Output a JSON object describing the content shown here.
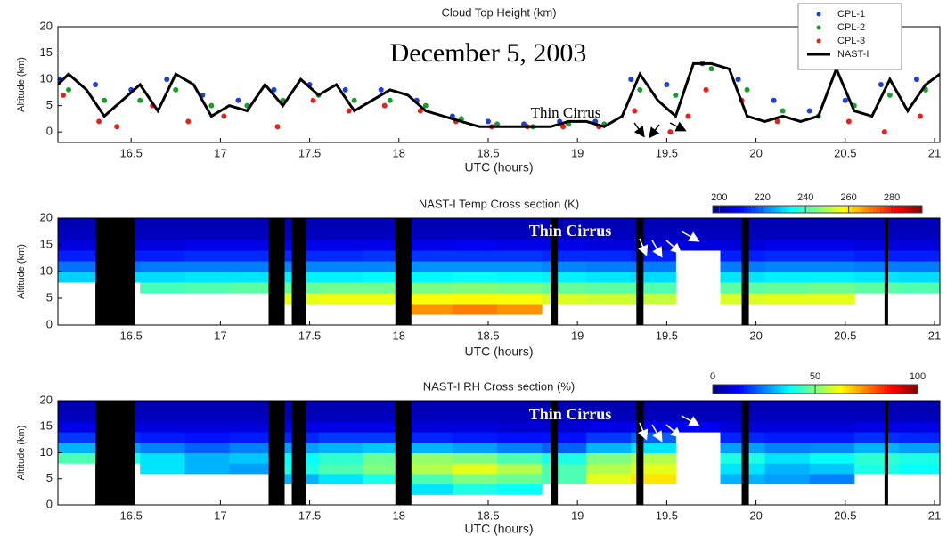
{
  "chart_data": [
    {
      "type": "scatter",
      "title": "Cloud Top Height (km)",
      "xlabel": "UTC (hours)",
      "ylabel": "Altitude (km)",
      "annotations": [
        "December 5, 2003",
        "Thin Cirrus"
      ],
      "xlim": [
        16.09,
        21.03
      ],
      "xticks": [
        16.5,
        17,
        17.5,
        18,
        18.5,
        19,
        19.5,
        20,
        20.5,
        21
      ],
      "ylim": [
        -2,
        20
      ],
      "yticks": [
        0,
        5,
        10,
        15,
        20
      ],
      "legend": "top-right",
      "series": [
        {
          "name": "CPL-1",
          "color": "#1f3fd6",
          "mode": "markers",
          "x": [
            16.1,
            16.3,
            16.5,
            16.7,
            16.9,
            17.1,
            17.3,
            17.5,
            17.7,
            17.9,
            18.1,
            18.3,
            18.5,
            18.7,
            18.9,
            19.1,
            19.3,
            19.5,
            19.7,
            19.9,
            20.1,
            20.3,
            20.5,
            20.7,
            20.9
          ],
          "values": [
            10,
            9,
            8,
            10,
            7,
            6,
            8,
            9,
            8,
            8,
            6,
            3,
            2,
            1.5,
            2,
            2,
            10,
            9,
            13,
            10,
            6,
            4,
            6,
            9,
            10
          ]
        },
        {
          "name": "CPL-2",
          "color": "#1e9a2e",
          "mode": "markers",
          "x": [
            16.15,
            16.35,
            16.55,
            16.75,
            16.95,
            17.15,
            17.35,
            17.55,
            17.75,
            17.95,
            18.15,
            18.35,
            18.55,
            18.75,
            18.95,
            19.15,
            19.35,
            19.55,
            19.75,
            19.95,
            20.15,
            20.35,
            20.55,
            20.75,
            20.95
          ],
          "values": [
            8,
            6,
            6,
            8,
            5,
            5,
            6,
            7,
            6,
            6,
            5,
            2.5,
            1.5,
            1,
            1.5,
            1.5,
            8,
            7,
            12,
            8,
            4,
            3,
            5,
            7,
            8
          ]
        },
        {
          "name": "CPL-3",
          "color": "#e0231c",
          "mode": "markers",
          "x": [
            16.12,
            16.32,
            16.42,
            16.62,
            16.82,
            17.02,
            17.32,
            17.52,
            17.72,
            17.92,
            18.12,
            18.32,
            18.52,
            18.72,
            18.92,
            19.12,
            19.32,
            19.52,
            19.62,
            19.72,
            19.92,
            20.12,
            20.52,
            20.72,
            20.92
          ],
          "values": [
            7,
            2,
            1,
            5,
            2,
            3,
            1,
            6,
            4,
            5,
            4,
            2,
            1,
            1,
            1,
            1,
            4,
            0,
            3,
            8,
            6,
            2,
            2,
            0,
            3
          ]
        },
        {
          "name": "NAST-I",
          "color": "#000000",
          "mode": "line",
          "x": [
            16.09,
            16.15,
            16.25,
            16.35,
            16.45,
            16.55,
            16.65,
            16.75,
            16.85,
            16.95,
            17.05,
            17.15,
            17.25,
            17.35,
            17.45,
            17.55,
            17.65,
            17.75,
            17.85,
            17.95,
            18.05,
            18.15,
            18.25,
            18.35,
            18.45,
            18.55,
            18.65,
            18.75,
            18.85,
            18.95,
            19.05,
            19.15,
            19.25,
            19.35,
            19.45,
            19.55,
            19.65,
            19.75,
            19.85,
            19.95,
            20.05,
            20.15,
            20.25,
            20.35,
            20.45,
            20.55,
            20.65,
            20.75,
            20.85,
            20.95,
            21.03
          ],
          "values": [
            9,
            11,
            8,
            3,
            6,
            9,
            4,
            11,
            9,
            3,
            5,
            4,
            9,
            5,
            10,
            7,
            9,
            4,
            6,
            8,
            7,
            4,
            3,
            2,
            1,
            1,
            1,
            1,
            1,
            2,
            2,
            1,
            3,
            11,
            6,
            3,
            13,
            13,
            12,
            3,
            2,
            3,
            2,
            3,
            12,
            4,
            3,
            10,
            4,
            9,
            11
          ]
        }
      ]
    },
    {
      "type": "heatmap",
      "title": "NAST-I Temp Cross section (K)",
      "xlabel": "UTC (hours)",
      "ylabel": "Altitude (km)",
      "annotations": [
        "Thin Cirrus"
      ],
      "xlim": [
        16.09,
        21.03
      ],
      "xticks": [
        16.5,
        17,
        17.5,
        18,
        18.5,
        19,
        19.5,
        20,
        20.5,
        21
      ],
      "ylim": [
        0,
        20
      ],
      "yticks": [
        0,
        5,
        10,
        15,
        20
      ],
      "clim": [
        197,
        294
      ],
      "colorbar_ticks": [
        200,
        220,
        240,
        260,
        280
      ],
      "colormap": "jet",
      "gap_color": "#000000",
      "gaps": [
        [
          16.3,
          16.52
        ],
        [
          17.27,
          17.36
        ],
        [
          17.4,
          17.48
        ],
        [
          17.98,
          18.07
        ],
        [
          18.85,
          18.89
        ],
        [
          19.33,
          19.37
        ],
        [
          19.92,
          19.96
        ],
        [
          20.72,
          20.74
        ]
      ],
      "xbins": [
        16.05,
        16.3,
        16.55,
        16.8,
        17.05,
        17.3,
        17.55,
        17.8,
        18.05,
        18.3,
        18.55,
        18.8,
        19.05,
        19.3,
        19.55,
        19.8,
        20.05,
        20.3,
        20.55,
        20.8,
        21.05
      ],
      "ybins": [
        0,
        2,
        4,
        6,
        8,
        10,
        12,
        14,
        16,
        18,
        20
      ],
      "z": [
        [
          null,
          null,
          null,
          null,
          null,
          null,
          null,
          null,
          null,
          null,
          null,
          null,
          null,
          null,
          null,
          null,
          null,
          null,
          null,
          null
        ],
        [
          null,
          null,
          null,
          null,
          null,
          null,
          null,
          null,
          268,
          270,
          268,
          null,
          null,
          null,
          null,
          null,
          null,
          null,
          null,
          null
        ],
        [
          null,
          null,
          null,
          null,
          null,
          255,
          256,
          256,
          257,
          258,
          257,
          254,
          253,
          252,
          null,
          254,
          255,
          255,
          null,
          null
        ],
        [
          null,
          null,
          240,
          241,
          242,
          243,
          244,
          244,
          245,
          246,
          245,
          243,
          242,
          241,
          null,
          242,
          243,
          244,
          242,
          241
        ],
        [
          229,
          230,
          230,
          231,
          231,
          232,
          232,
          233,
          233,
          234,
          233,
          232,
          231,
          230,
          null,
          231,
          232,
          232,
          231,
          230
        ],
        [
          220,
          220,
          221,
          221,
          221,
          222,
          222,
          222,
          223,
          223,
          223,
          222,
          221,
          221,
          null,
          221,
          222,
          222,
          221,
          221
        ],
        [
          212,
          212,
          212,
          213,
          213,
          213,
          213,
          214,
          214,
          214,
          214,
          213,
          213,
          212,
          null,
          212,
          213,
          213,
          212,
          212
        ],
        [
          206,
          206,
          206,
          207,
          207,
          207,
          207,
          207,
          207,
          208,
          207,
          207,
          206,
          206,
          206,
          206,
          207,
          207,
          206,
          206
        ],
        [
          203,
          203,
          203,
          203,
          203,
          203,
          203,
          203,
          203,
          203,
          203,
          203,
          203,
          203,
          203,
          203,
          203,
          203,
          203,
          203
        ],
        [
          202,
          202,
          202,
          202,
          202,
          202,
          202,
          202,
          202,
          202,
          202,
          202,
          202,
          202,
          202,
          202,
          202,
          202,
          202,
          202
        ]
      ]
    },
    {
      "type": "heatmap",
      "title": "NAST-I RH Cross section (%)",
      "xlabel": "UTC (hours)",
      "ylabel": "Altitude (km)",
      "annotations": [
        "Thin Cirrus"
      ],
      "xlim": [
        16.09,
        21.03
      ],
      "xticks": [
        16.5,
        17,
        17.5,
        18,
        18.5,
        19,
        19.5,
        20,
        20.5,
        21
      ],
      "ylim": [
        0,
        20
      ],
      "yticks": [
        0,
        5,
        10,
        15,
        20
      ],
      "clim": [
        0,
        100
      ],
      "colorbar_ticks": [
        0,
        50,
        100
      ],
      "colormap": "jet",
      "gap_color": "#000000",
      "gaps": [
        [
          16.3,
          16.52
        ],
        [
          17.27,
          17.36
        ],
        [
          17.4,
          17.48
        ],
        [
          17.98,
          18.07
        ],
        [
          18.85,
          18.89
        ],
        [
          19.33,
          19.37
        ],
        [
          19.92,
          19.96
        ],
        [
          20.72,
          20.74
        ]
      ],
      "xbins": [
        16.05,
        16.3,
        16.55,
        16.8,
        17.05,
        17.3,
        17.55,
        17.8,
        18.05,
        18.3,
        18.55,
        18.8,
        19.05,
        19.3,
        19.55,
        19.8,
        20.05,
        20.3,
        20.55,
        20.8,
        21.05
      ],
      "ybins": [
        0,
        2,
        4,
        6,
        8,
        10,
        12,
        14,
        16,
        18,
        20
      ],
      "z": [
        [
          null,
          null,
          null,
          null,
          null,
          null,
          null,
          null,
          null,
          null,
          null,
          null,
          null,
          null,
          null,
          null,
          null,
          null,
          null,
          null
        ],
        [
          null,
          null,
          null,
          null,
          null,
          null,
          null,
          null,
          35,
          40,
          38,
          null,
          null,
          null,
          null,
          null,
          null,
          null,
          null,
          null
        ],
        [
          null,
          null,
          null,
          null,
          null,
          30,
          35,
          40,
          45,
          50,
          48,
          45,
          60,
          65,
          null,
          30,
          28,
          25,
          null,
          null
        ],
        [
          null,
          null,
          35,
          30,
          28,
          40,
          45,
          50,
          55,
          60,
          55,
          45,
          55,
          60,
          null,
          35,
          30,
          32,
          40,
          38
        ],
        [
          45,
          40,
          35,
          30,
          32,
          38,
          42,
          48,
          52,
          50,
          45,
          40,
          50,
          55,
          null,
          40,
          35,
          38,
          42,
          40
        ],
        [
          30,
          28,
          25,
          22,
          25,
          28,
          30,
          32,
          30,
          28,
          25,
          22,
          30,
          35,
          null,
          28,
          25,
          26,
          30,
          28
        ],
        [
          18,
          16,
          15,
          14,
          15,
          16,
          18,
          18,
          16,
          15,
          14,
          14,
          18,
          22,
          null,
          16,
          15,
          15,
          17,
          16
        ],
        [
          10,
          10,
          9,
          9,
          9,
          10,
          10,
          10,
          9,
          9,
          8,
          8,
          10,
          12,
          11,
          9,
          9,
          9,
          10,
          10
        ],
        [
          6,
          6,
          6,
          6,
          6,
          6,
          6,
          6,
          6,
          6,
          6,
          6,
          6,
          6,
          6,
          6,
          6,
          6,
          6,
          6
        ],
        [
          5,
          5,
          5,
          5,
          5,
          5,
          5,
          5,
          5,
          5,
          5,
          5,
          5,
          5,
          5,
          5,
          5,
          5,
          5,
          5
        ]
      ]
    }
  ]
}
